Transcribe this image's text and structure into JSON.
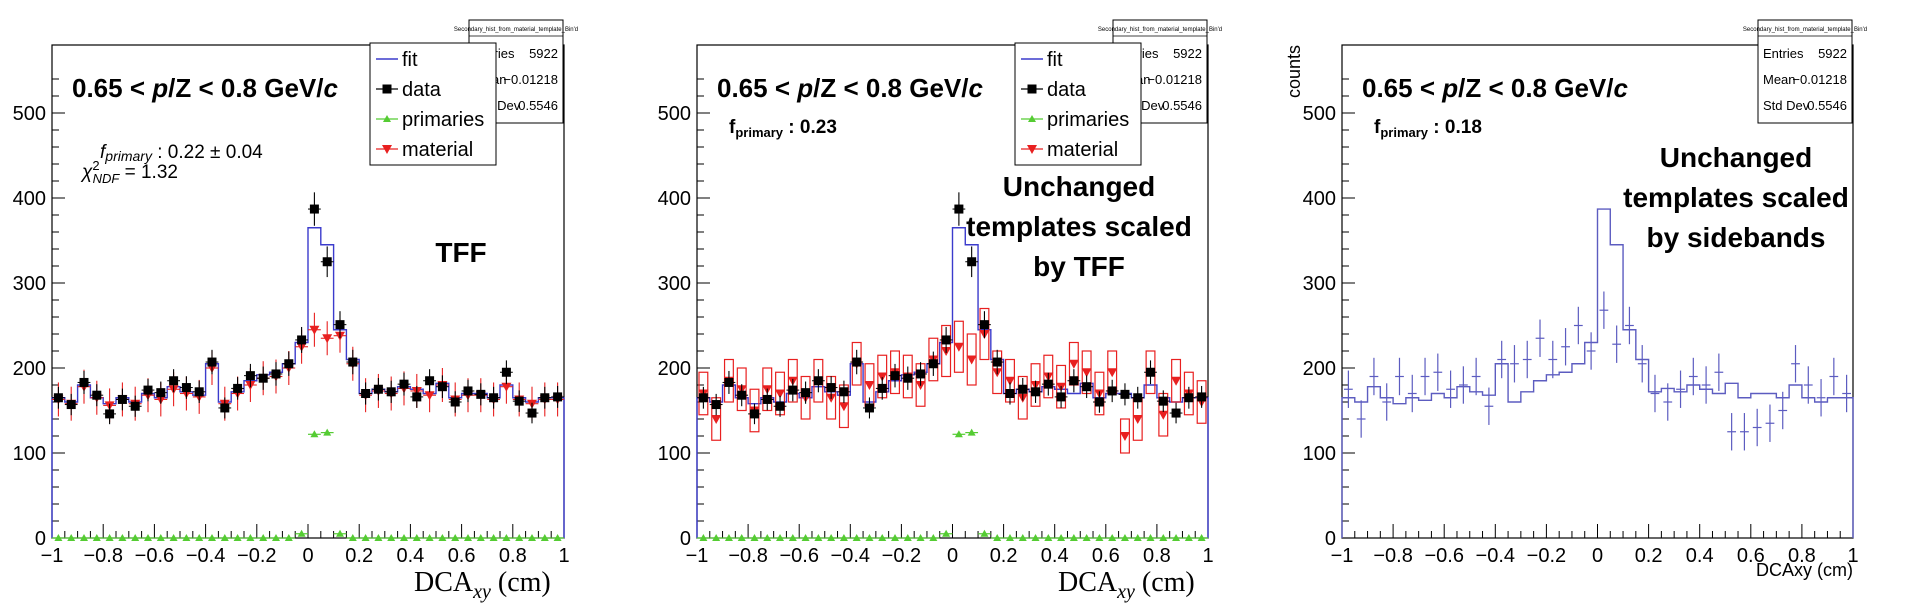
{
  "colors": {
    "fit": "#3b3bcc",
    "data": "#000000",
    "primaries": "#55cc33",
    "material": "#e82020",
    "hist": "#5c5cc0"
  },
  "legend": [
    "fit",
    "data",
    "primaries",
    "material"
  ],
  "stats_box": {
    "title": "Secondary_hist_from_material_template_Bin'd",
    "entries_label": "Entries",
    "entries": "5922",
    "mean_label": "Mean",
    "mean": "−0.01218",
    "stddev_label": "Std Dev",
    "stddev": "0.5546"
  },
  "x_ticks": [
    "−1",
    "−0.8",
    "−0.6",
    "−0.4",
    "−0.2",
    "0",
    "0.2",
    "0.4",
    "0.6",
    "0.8",
    "1"
  ],
  "y_ticks": [
    "0",
    "100",
    "200",
    "300",
    "400",
    "500"
  ],
  "chart_data": [
    {
      "type": "histogram",
      "panel": "TFF fit",
      "range_label": "0.65 < p/Z < 0.8 GeV/c",
      "fit_result": "f_primary : 0.22 ± 0.04",
      "chi2_ndf": "χ²_NDF = 1.32",
      "annotation": [
        "TFF"
      ],
      "xlabel": "DCA_xy (cm)",
      "ylabel": "",
      "xlim": [
        -1,
        1
      ],
      "ylim": [
        0,
        580
      ],
      "grid": false,
      "legend_placement": "top-center",
      "bin_width": 0.05,
      "x": [
        -0.975,
        -0.925,
        -0.875,
        -0.825,
        -0.775,
        -0.725,
        -0.675,
        -0.625,
        -0.575,
        -0.525,
        -0.475,
        -0.425,
        -0.375,
        -0.325,
        -0.275,
        -0.225,
        -0.175,
        -0.125,
        -0.075,
        -0.025,
        0.025,
        0.075,
        0.125,
        0.175,
        0.225,
        0.275,
        0.325,
        0.375,
        0.425,
        0.475,
        0.525,
        0.575,
        0.625,
        0.675,
        0.725,
        0.775,
        0.825,
        0.875,
        0.925,
        0.975
      ],
      "series": [
        {
          "name": "fit",
          "values": [
            165,
            160,
            180,
            165,
            158,
            165,
            160,
            170,
            165,
            178,
            172,
            168,
            205,
            160,
            172,
            185,
            192,
            195,
            205,
            230,
            365,
            345,
            245,
            210,
            170,
            175,
            172,
            178,
            175,
            170,
            182,
            165,
            170,
            170,
            165,
            180,
            165,
            160,
            165,
            165
          ]
        },
        {
          "name": "data",
          "values": [
            165,
            157,
            183,
            168,
            146,
            163,
            155,
            174,
            171,
            185,
            177,
            172,
            207,
            153,
            176,
            191,
            188,
            193,
            205,
            233,
            387,
            325,
            251,
            207,
            170,
            175,
            172,
            181,
            166,
            185,
            178,
            160,
            173,
            169,
            165,
            195,
            161,
            147,
            165,
            166
          ]
        },
        {
          "name": "material",
          "values": [
            163,
            158,
            178,
            165,
            156,
            163,
            158,
            168,
            163,
            175,
            170,
            166,
            200,
            158,
            170,
            180,
            188,
            190,
            200,
            225,
            245,
            235,
            238,
            205,
            168,
            173,
            170,
            176,
            173,
            168,
            180,
            163,
            168,
            168,
            163,
            178,
            163,
            158,
            163,
            163
          ]
        },
        {
          "name": "primaries",
          "values": [
            0,
            0,
            0,
            0,
            0,
            0,
            0,
            0,
            0,
            0,
            0,
            0,
            0,
            0,
            0,
            0,
            0,
            0,
            0,
            5,
            122,
            124,
            5,
            0,
            0,
            0,
            0,
            0,
            0,
            0,
            0,
            0,
            0,
            0,
            0,
            0,
            0,
            0,
            0,
            0
          ]
        }
      ]
    },
    {
      "type": "histogram",
      "panel": "Unchanged templates scaled by TFF",
      "range_label": "0.65 < p/Z < 0.8 GeV/c",
      "fit_result": "f_primary : 0.23",
      "annotation": [
        "Unchanged",
        "templates scaled",
        "by TFF"
      ],
      "xlabel": "DCA_xy (cm)",
      "ylabel": "",
      "xlim": [
        -1,
        1
      ],
      "ylim": [
        0,
        580
      ],
      "grid": false,
      "legend_placement": "top-center",
      "bin_width": 0.05,
      "x": [
        -0.975,
        -0.925,
        -0.875,
        -0.825,
        -0.775,
        -0.725,
        -0.675,
        -0.625,
        -0.575,
        -0.525,
        -0.475,
        -0.425,
        -0.375,
        -0.325,
        -0.275,
        -0.225,
        -0.175,
        -0.125,
        -0.075,
        -0.025,
        0.025,
        0.075,
        0.125,
        0.175,
        0.225,
        0.275,
        0.325,
        0.375,
        0.425,
        0.475,
        0.525,
        0.575,
        0.625,
        0.675,
        0.725,
        0.775,
        0.825,
        0.875,
        0.925,
        0.975
      ],
      "series": [
        {
          "name": "fit",
          "values": [
            165,
            160,
            180,
            165,
            158,
            165,
            160,
            170,
            165,
            178,
            172,
            168,
            205,
            160,
            172,
            185,
            192,
            195,
            205,
            230,
            365,
            345,
            245,
            210,
            170,
            175,
            172,
            178,
            175,
            170,
            182,
            165,
            170,
            170,
            165,
            180,
            165,
            160,
            165,
            165
          ]
        },
        {
          "name": "data",
          "values": [
            165,
            157,
            183,
            168,
            146,
            163,
            155,
            174,
            171,
            185,
            177,
            172,
            207,
            153,
            176,
            191,
            188,
            193,
            205,
            233,
            387,
            325,
            251,
            207,
            170,
            175,
            172,
            181,
            166,
            185,
            178,
            160,
            173,
            169,
            165,
            195,
            161,
            147,
            165,
            166
          ]
        },
        {
          "name": "material",
          "values": [
            170,
            140,
            185,
            175,
            150,
            175,
            170,
            185,
            165,
            185,
            165,
            155,
            205,
            180,
            190,
            195,
            190,
            180,
            210,
            220,
            225,
            210,
            240,
            195,
            185,
            165,
            180,
            190,
            178,
            205,
            195,
            170,
            195,
            120,
            140,
            195,
            145,
            185,
            170,
            160
          ],
          "errors": [
            25,
            25,
            25,
            25,
            25,
            25,
            25,
            25,
            25,
            25,
            25,
            25,
            25,
            25,
            25,
            25,
            25,
            25,
            25,
            30,
            30,
            30,
            30,
            25,
            25,
            25,
            25,
            25,
            25,
            25,
            25,
            25,
            25,
            20,
            25,
            25,
            25,
            25,
            25,
            25
          ]
        },
        {
          "name": "primaries",
          "values": [
            0,
            0,
            0,
            0,
            0,
            0,
            0,
            0,
            0,
            0,
            0,
            0,
            0,
            0,
            0,
            0,
            0,
            0,
            0,
            5,
            122,
            124,
            5,
            0,
            0,
            0,
            0,
            0,
            0,
            0,
            0,
            0,
            0,
            0,
            0,
            0,
            0,
            0,
            0,
            0
          ]
        }
      ]
    },
    {
      "type": "histogram",
      "panel": "Unchanged templates scaled by sidebands",
      "range_label": "0.65 < p/Z < 0.8 GeV/c",
      "fit_result": "f_primary : 0.18",
      "annotation": [
        "Unchanged",
        "templates scaled",
        "by sidebands"
      ],
      "xlabel": "DCAxy (cm)",
      "ylabel": "counts",
      "xlim": [
        -1,
        1
      ],
      "ylim": [
        0,
        580
      ],
      "grid": false,
      "bin_width": 0.05,
      "x": [
        -0.975,
        -0.925,
        -0.875,
        -0.825,
        -0.775,
        -0.725,
        -0.675,
        -0.625,
        -0.575,
        -0.525,
        -0.475,
        -0.425,
        -0.375,
        -0.325,
        -0.275,
        -0.225,
        -0.175,
        -0.125,
        -0.075,
        -0.025,
        0.025,
        0.075,
        0.125,
        0.175,
        0.225,
        0.275,
        0.325,
        0.375,
        0.425,
        0.475,
        0.525,
        0.575,
        0.625,
        0.675,
        0.725,
        0.775,
        0.825,
        0.875,
        0.925,
        0.975
      ],
      "series": [
        {
          "name": "histogram",
          "values": [
            165,
            160,
            178,
            165,
            158,
            165,
            162,
            170,
            165,
            178,
            172,
            168,
            205,
            160,
            172,
            185,
            192,
            195,
            205,
            230,
            387,
            345,
            245,
            210,
            172,
            176,
            172,
            180,
            175,
            170,
            182,
            165,
            170,
            170,
            165,
            180,
            165,
            160,
            165,
            165
          ]
        },
        {
          "name": "points",
          "values": [
            175,
            140,
            190,
            160,
            190,
            170,
            190,
            195,
            175,
            180,
            190,
            155,
            210,
            205,
            210,
            235,
            210,
            225,
            250,
            220,
            268,
            228,
            250,
            205,
            170,
            160,
            175,
            190,
            180,
            195,
            125,
            125,
            130,
            135,
            150,
            205,
            180,
            165,
            190,
            170
          ]
        }
      ]
    }
  ]
}
